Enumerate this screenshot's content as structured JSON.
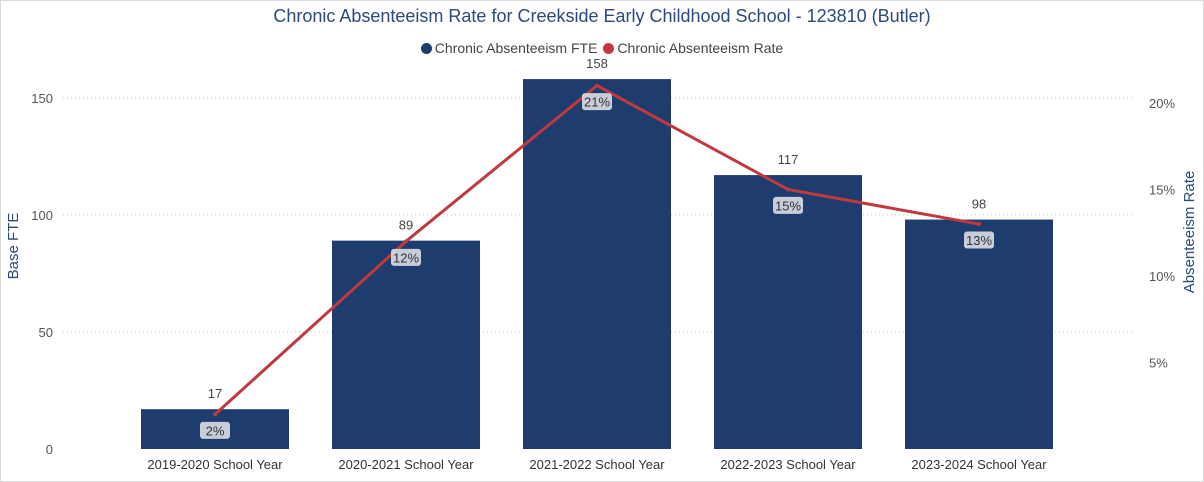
{
  "chart_data": {
    "type": "bar",
    "title": "Chronic Absenteeism Rate for Creekside Early Childhood School - 123810 (Butler)",
    "categories": [
      "2019-2020 School Year",
      "2020-2021 School Year",
      "2021-2022 School Year",
      "2022-2023 School Year",
      "2023-2024 School Year"
    ],
    "series": [
      {
        "name": "Chronic Absenteeism FTE",
        "type": "bar",
        "axis": "left",
        "values": [
          17,
          89,
          158,
          117,
          98
        ],
        "labels": [
          "17",
          "89",
          "158",
          "117",
          "98"
        ],
        "color": "#1f3c6e"
      },
      {
        "name": "Chronic Absenteeism Rate",
        "type": "line",
        "axis": "right",
        "values": [
          2,
          12,
          21,
          15,
          13
        ],
        "labels": [
          "2%",
          "12%",
          "21%",
          "15%",
          "13%"
        ],
        "color": "#c0393f"
      }
    ],
    "ylabel": "Base FTE",
    "y2label": "Absenteeism Rate",
    "ylim": [
      0,
      170
    ],
    "yticks": [
      0,
      50,
      100,
      150
    ],
    "y2lim": [
      0,
      23
    ],
    "y2ticks": [
      5,
      10,
      15,
      20
    ],
    "y2tick_labels": [
      "5%",
      "10%",
      "15%",
      "20%"
    ],
    "grid": true,
    "legend_position": "top-center"
  }
}
